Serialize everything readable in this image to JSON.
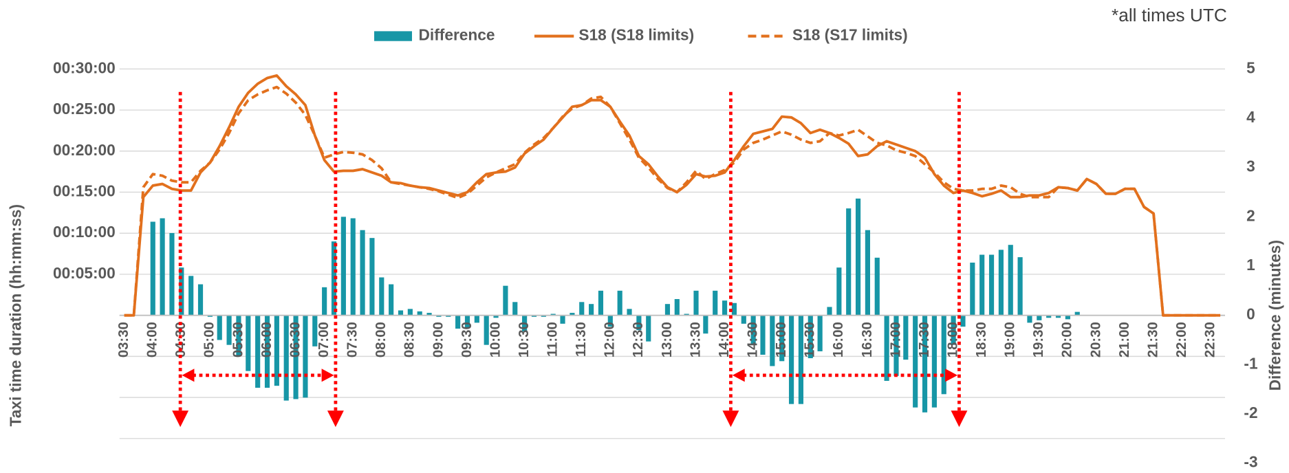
{
  "chart_data": {
    "type": "combo",
    "annotation": "*all times UTC",
    "y_label": "Taxi time duration (hh:mm:ss)",
    "y2_label": "Difference  (minutes)",
    "categories": [
      "03:30",
      null,
      null,
      "04:00",
      null,
      null,
      "04:30",
      null,
      null,
      "05:00",
      null,
      null,
      "05:30",
      null,
      null,
      "06:00",
      null,
      null,
      "06:30",
      null,
      null,
      "07:00",
      null,
      null,
      "07:30",
      null,
      null,
      "08:00",
      null,
      null,
      "08:30",
      null,
      null,
      "09:00",
      null,
      null,
      "09:30",
      null,
      null,
      "10:00",
      null,
      null,
      "10:30",
      null,
      null,
      "11:00",
      null,
      null,
      "11:30",
      null,
      null,
      "12:00",
      null,
      null,
      "12:30",
      null,
      null,
      "13:00",
      null,
      null,
      "13:30",
      null,
      null,
      "14:00",
      null,
      null,
      "14:30",
      null,
      null,
      "15:00",
      null,
      null,
      "15:30",
      null,
      null,
      "16:00",
      null,
      null,
      "16:30",
      null,
      null,
      "17:00",
      null,
      null,
      "17:30",
      null,
      null,
      "18:00",
      null,
      null,
      "18:30",
      null,
      null,
      "19:00",
      null,
      null,
      "19:30",
      null,
      null,
      "20:00",
      null,
      null,
      "20:30",
      null,
      null,
      "21:00",
      null,
      null,
      "21:30",
      null,
      null,
      "22:00",
      null,
      null,
      "22:30",
      null
    ],
    "series": [
      {
        "name": "Difference",
        "type": "bar",
        "axis": "y2",
        "color": "#1796a6",
        "values": [
          0,
          0,
          0,
          1.9,
          1.97,
          1.67,
          0.97,
          0.8,
          0.63,
          -0.03,
          -0.5,
          -0.6,
          -0.82,
          -1.13,
          -1.47,
          -1.47,
          -1.43,
          -1.73,
          -1.7,
          -1.67,
          -0.63,
          0.57,
          1.5,
          2.0,
          1.97,
          1.73,
          1.57,
          0.77,
          0.63,
          0.1,
          0.13,
          0.08,
          0.05,
          -0.03,
          -0.03,
          -0.27,
          -0.25,
          -0.15,
          -0.6,
          -0.05,
          0.6,
          0.27,
          -0.33,
          -0.03,
          -0.03,
          0.03,
          -0.17,
          0.05,
          0.27,
          0.23,
          0.5,
          -0.23,
          0.5,
          0.13,
          -0.3,
          -0.53,
          0,
          0.23,
          0.33,
          0.03,
          0.5,
          -0.37,
          0.5,
          0.3,
          0.25,
          -0.17,
          -0.6,
          -0.8,
          -1.03,
          -0.93,
          -1.8,
          -1.8,
          -0.87,
          -0.73,
          0.17,
          0.97,
          2.17,
          2.37,
          1.73,
          1.17,
          -1.33,
          -1.23,
          -0.9,
          -1.87,
          -1.97,
          -1.87,
          -1.6,
          -0.6,
          -0.23,
          1.07,
          1.23,
          1.23,
          1.33,
          1.43,
          1.18,
          -0.15,
          -0.1,
          -0.05,
          -0.05,
          -0.08,
          0.07,
          0,
          0,
          0,
          0,
          0,
          0,
          0,
          0,
          0,
          0,
          0,
          0,
          0,
          0,
          0
        ]
      },
      {
        "name": "S18 (S18 limits)",
        "type": "line",
        "color": "#e2701d",
        "dashed": false,
        "values": [
          0,
          0,
          14.4,
          15.8,
          16.0,
          15.4,
          15.2,
          15.2,
          17.4,
          18.6,
          20.6,
          22.9,
          25.4,
          27.1,
          28.2,
          28.9,
          29.2,
          27.9,
          26.9,
          25.6,
          21.9,
          18.9,
          17.5,
          17.6,
          17.6,
          17.8,
          17.4,
          17.0,
          16.2,
          16.1,
          15.8,
          15.6,
          15.5,
          15.2,
          14.9,
          14.6,
          15.0,
          16.2,
          17.2,
          17.4,
          17.5,
          18.0,
          19.7,
          20.6,
          21.4,
          22.8,
          24.1,
          25.4,
          25.6,
          26.2,
          26.2,
          25.4,
          23.6,
          21.9,
          19.4,
          18.4,
          16.9,
          15.6,
          15.0,
          15.9,
          17.2,
          16.9,
          17.0,
          17.4,
          18.9,
          20.6,
          22.1,
          22.4,
          22.7,
          24.2,
          24.1,
          23.4,
          22.2,
          22.6,
          22.2,
          21.6,
          20.9,
          19.4,
          19.6,
          20.6,
          21.2,
          20.8,
          20.4,
          20.0,
          19.2,
          17.2,
          15.8,
          14.9,
          15.2,
          14.9,
          14.5,
          14.8,
          15.2,
          14.4,
          14.4,
          14.6,
          14.6,
          14.9,
          15.6,
          15.5,
          15.2,
          16.6,
          16.0,
          14.8,
          14.8,
          15.4,
          15.4,
          13.2,
          12.4,
          0,
          0,
          0,
          0,
          0,
          0,
          0
        ]
      },
      {
        "name": "S18 (S17 limits)",
        "type": "line",
        "color": "#e2701d",
        "dashed": true,
        "values": [
          0,
          0,
          15.6,
          17.2,
          17.0,
          16.4,
          16.2,
          16.2,
          17.6,
          18.6,
          20.2,
          22.2,
          24.6,
          26.2,
          26.9,
          27.4,
          27.8,
          27.0,
          25.9,
          24.4,
          21.9,
          19.2,
          19.6,
          19.9,
          19.8,
          19.6,
          18.9,
          17.9,
          16.2,
          16.0,
          15.8,
          15.6,
          15.4,
          15.1,
          14.7,
          14.3,
          14.8,
          15.8,
          16.8,
          17.4,
          17.9,
          18.4,
          19.8,
          20.8,
          21.6,
          22.8,
          24.2,
          25.2,
          25.6,
          26.4,
          26.6,
          25.4,
          23.4,
          21.4,
          19.2,
          18.0,
          16.6,
          15.5,
          15.0,
          16.2,
          17.6,
          16.6,
          17.2,
          17.7,
          18.6,
          20.2,
          21.0,
          21.4,
          21.9,
          22.4,
          22.0,
          21.4,
          21.0,
          21.2,
          22.2,
          21.9,
          22.2,
          22.6,
          21.8,
          21.0,
          20.7,
          20.1,
          19.8,
          19.4,
          18.4,
          17.4,
          16.2,
          15.4,
          15.2,
          15.2,
          15.4,
          15.4,
          15.8,
          15.6,
          14.8,
          14.4,
          14.4,
          14.4,
          15.6,
          15.5,
          15.2,
          16.6,
          16.0,
          14.8,
          14.8,
          15.4,
          15.4,
          13.2,
          12.4,
          0,
          0,
          0,
          0,
          0,
          0,
          0
        ]
      }
    ],
    "ylim": [
      -15,
      30
    ],
    "yticks": [
      {
        "value": -15,
        "label": null
      },
      {
        "value": -10,
        "label": null
      },
      {
        "value": -5,
        "label": null
      },
      {
        "value": 0,
        "label": null
      },
      {
        "value": 5,
        "label": "00:05:00"
      },
      {
        "value": 10,
        "label": "00:10:00"
      },
      {
        "value": 15,
        "label": "00:15:00"
      },
      {
        "value": 20,
        "label": "00:20:00"
      },
      {
        "value": 25,
        "label": "00:25:00"
      },
      {
        "value": 30,
        "label": "00:30:00"
      }
    ],
    "y2lim": [
      -3,
      5
    ],
    "y2ticks": [
      -3,
      -2,
      -1,
      0,
      1,
      2,
      3,
      4,
      5
    ],
    "grid": true,
    "legend": "top"
  }
}
